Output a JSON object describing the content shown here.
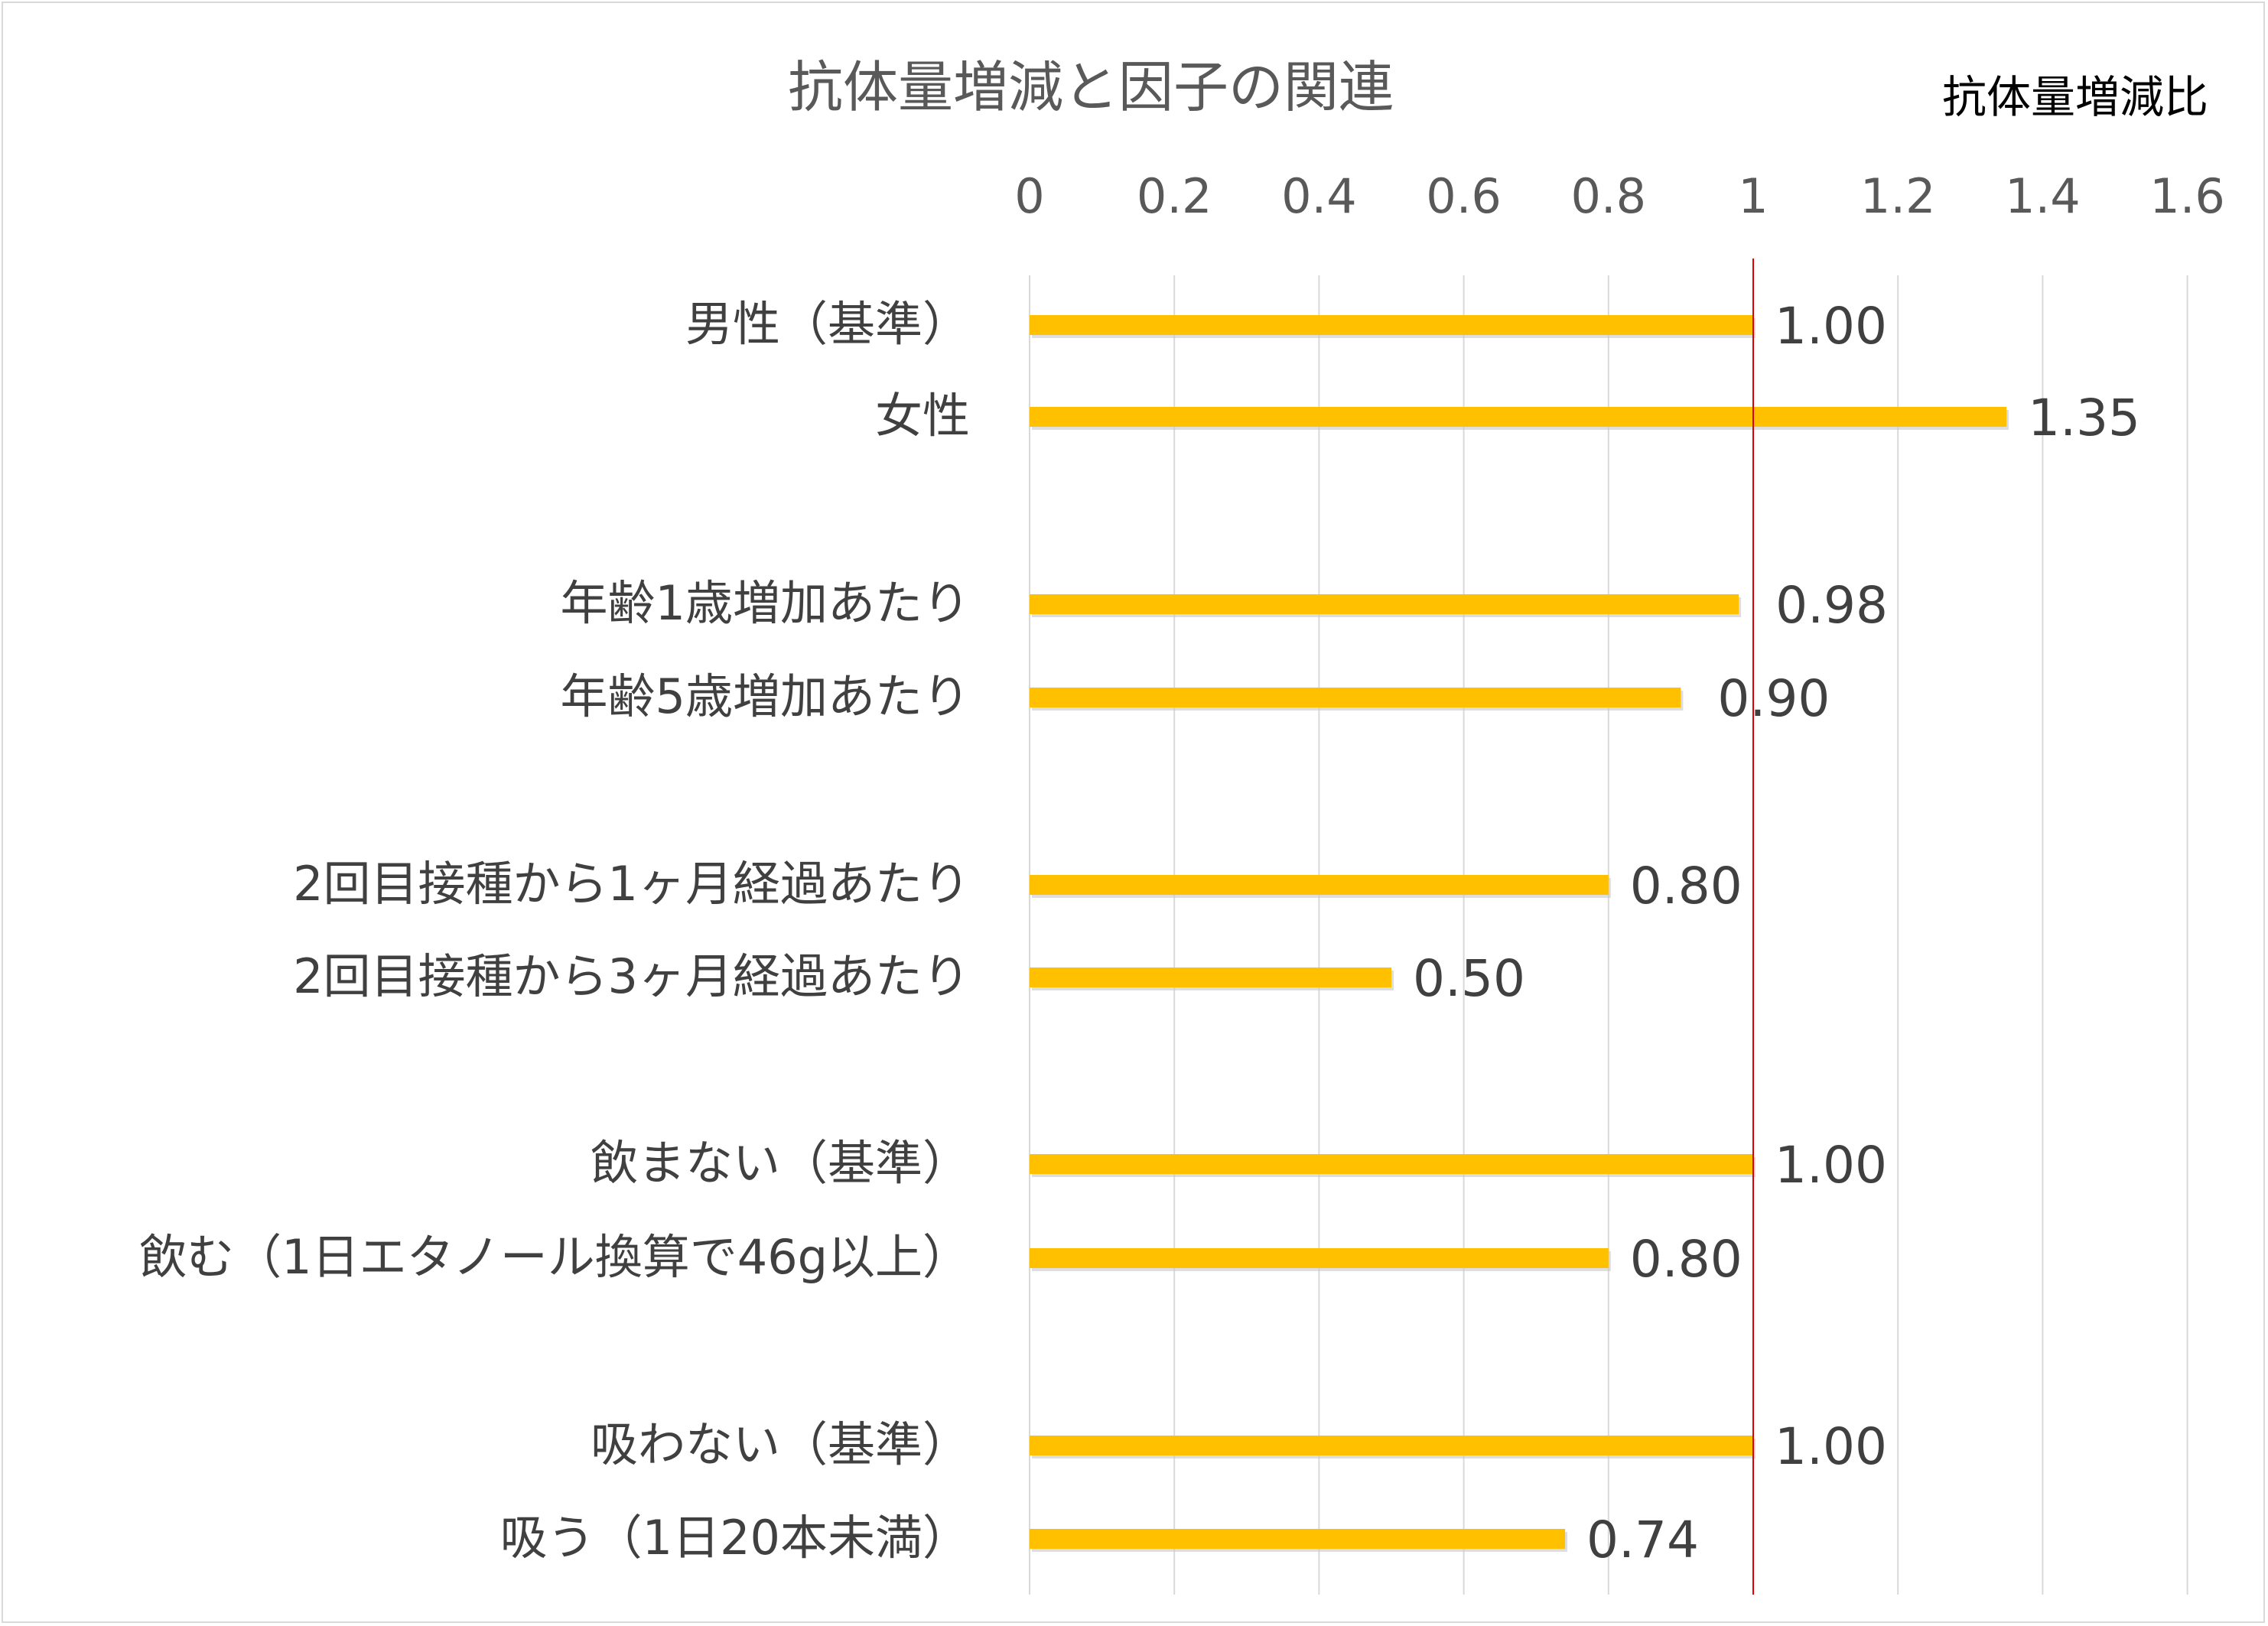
{
  "chart_data": {
    "type": "bar",
    "orientation": "horizontal",
    "title": "抗体量増減と因子の関連",
    "unit_label": "抗体量増減比",
    "xlim": [
      0,
      1.6
    ],
    "ticks": [
      "0",
      "0.2",
      "0.4",
      "0.6",
      "0.8",
      "1",
      "1.2",
      "1.4",
      "1.6"
    ],
    "tick_values": [
      0,
      0.2,
      0.4,
      0.6,
      0.8,
      1.0,
      1.2,
      1.4,
      1.6
    ],
    "reference_line": 1.0,
    "grid": true,
    "bar_color": "#FFC000",
    "reference_color": "#E00000",
    "categories": [
      "男性（基準）",
      "女性",
      "年齢1歳増加あたり",
      "年齢5歳増加あたり",
      "2回目接種から1ヶ月経過あたり",
      "2回目接種から3ヶ月経過あたり",
      "飲まない（基準）",
      "飲む（1日エタノール換算で46g以上）",
      "吸わない（基準）",
      "吸う（1日20本未満）"
    ],
    "values": [
      1.0,
      1.35,
      0.98,
      0.9,
      0.8,
      0.5,
      1.0,
      0.8,
      1.0,
      0.74
    ],
    "value_labels": [
      "1.00",
      "1.35",
      "0.98",
      "0.90",
      "0.80",
      "0.50",
      "1.00",
      "0.80",
      "1.00",
      "0.74"
    ]
  }
}
